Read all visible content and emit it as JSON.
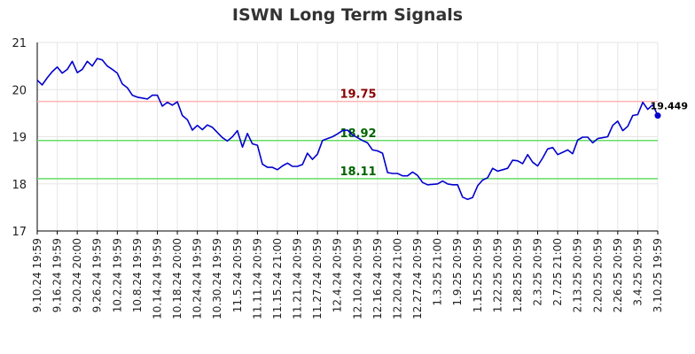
{
  "chart_data": {
    "type": "line",
    "title": "ISWN Long Term Signals",
    "xlabel": "",
    "ylabel": "",
    "ylim": [
      17,
      21
    ],
    "yticks": [
      "17",
      "18",
      "19",
      "20",
      "21"
    ],
    "xticks": [
      "9.10.24 19:59",
      "9.16.24 19:59",
      "9.20.24 20:00",
      "9.26.24 19:59",
      "10.2.24 19:59",
      "10.8.24 19:59",
      "10.14.24 19:59",
      "10.18.24 20:00",
      "10.24.24 19:59",
      "10.30.24 19:59",
      "11.5.24 20:59",
      "11.11.24 20:59",
      "11.15.24 21:00",
      "11.21.24 20:59",
      "11.27.24 20:59",
      "12.4.24 20:59",
      "12.10.24 20:59",
      "12.16.24 20:59",
      "12.20.24 21:00",
      "12.27.24 20:59",
      "1.3.25 21:00",
      "1.9.25 20:59",
      "1.15.25 20:59",
      "1.22.25 20:59",
      "1.28.25 20:59",
      "2.3.25 20:59",
      "2.7.25 21:00",
      "2.13.25 20:59",
      "2.20.25 20:59",
      "2.26.25 20:59",
      "3.4.25 20:59",
      "3.10.25 19:59"
    ],
    "grid": true,
    "colors": {
      "line": "#0000cc",
      "resistance": "#ffb3b3",
      "support": "#66dd66",
      "resistance_text": "#8b0000",
      "support_text": "#006400"
    },
    "levels": [
      {
        "label": "19.75",
        "value": 19.75,
        "kind": "resistance"
      },
      {
        "label": "18.92",
        "value": 18.92,
        "kind": "support"
      },
      {
        "label": "18.11",
        "value": 18.11,
        "kind": "support"
      }
    ],
    "last_value_label": "19.449",
    "series": [
      {
        "values": [
          20.2,
          20.1,
          20.25,
          20.38,
          20.48,
          20.35,
          20.43,
          20.6,
          20.36,
          20.43,
          20.6,
          20.5,
          20.66,
          20.63,
          20.5,
          20.43,
          20.35,
          20.12,
          20.04,
          19.88,
          19.84,
          19.82,
          19.8,
          19.88,
          19.88,
          19.65,
          19.73,
          19.67,
          19.74,
          19.45,
          19.36,
          19.14,
          19.24,
          19.15,
          19.25,
          19.2,
          19.09,
          18.98,
          18.91,
          19.0,
          19.13,
          18.78,
          19.07,
          18.85,
          18.82,
          18.42,
          18.35,
          18.35,
          18.3,
          18.38,
          18.44,
          18.37,
          18.37,
          18.41,
          18.65,
          18.52,
          18.63,
          18.92,
          18.96,
          19.0,
          19.06,
          19.13,
          19.14,
          19.04,
          18.98,
          18.92,
          18.87,
          18.72,
          18.7,
          18.65,
          18.24,
          18.22,
          18.22,
          18.17,
          18.17,
          18.25,
          18.18,
          18.03,
          17.98,
          17.99,
          18.0,
          18.06,
          18.0,
          17.98,
          17.98,
          17.72,
          17.67,
          17.71,
          17.96,
          18.08,
          18.13,
          18.33,
          18.27,
          18.3,
          18.33,
          18.5,
          18.49,
          18.43,
          18.62,
          18.46,
          18.38,
          18.55,
          18.74,
          18.77,
          18.62,
          18.67,
          18.72,
          18.64,
          18.93,
          18.99,
          18.99,
          18.87,
          18.96,
          18.98,
          19.0,
          19.24,
          19.33,
          19.13,
          19.22,
          19.45,
          19.47,
          19.73,
          19.58,
          19.68,
          19.449
        ]
      }
    ]
  }
}
